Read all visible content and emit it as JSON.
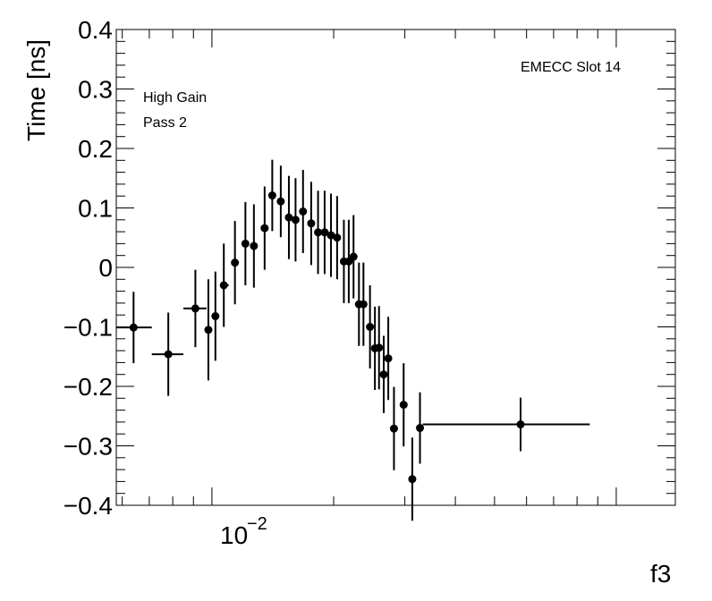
{
  "chart_data": {
    "type": "scatter",
    "style": "points-with-error-bars",
    "x_scale": "log",
    "xlim": [
      0.0058,
      0.14
    ],
    "ylim": [
      -0.4,
      0.4
    ],
    "xlabel": "f3",
    "ylabel": "Time [ns]",
    "x_tick_label_mantissa": "10",
    "x_tick_label_exponent": "−2",
    "y_ticks": [
      -0.4,
      -0.3,
      -0.2,
      -0.1,
      0,
      0.1,
      0.2,
      0.3,
      0.4
    ],
    "y_tick_labels": [
      "−0.4",
      "−0.3",
      "−0.2",
      "−0.1",
      "0",
      "0.1",
      "0.2",
      "0.3",
      "0.4"
    ],
    "annotations": {
      "slot": "EMECC Slot 14",
      "gain": "High Gain",
      "pass": "Pass 2"
    },
    "series": [
      {
        "name": "Pass 2",
        "points": [
          {
            "x": 0.0064,
            "xlo": 0.0058,
            "xhi": 0.0071,
            "y": -0.101,
            "ey": 0.06
          },
          {
            "x": 0.0078,
            "xlo": 0.0071,
            "xhi": 0.0085,
            "y": -0.146,
            "ey": 0.07
          },
          {
            "x": 0.0091,
            "xlo": 0.0085,
            "xhi": 0.0097,
            "y": -0.069,
            "ey": 0.065
          },
          {
            "x": 0.0098,
            "xlo": 0.0097,
            "xhi": 0.01,
            "y": -0.105,
            "ey": 0.085
          },
          {
            "x": 0.0102,
            "xlo": 0.0101,
            "xhi": 0.0104,
            "y": -0.082,
            "ey": 0.075
          },
          {
            "x": 0.0107,
            "xlo": 0.0105,
            "xhi": 0.011,
            "y": -0.03,
            "ey": 0.07
          },
          {
            "x": 0.0114,
            "xlo": 0.0112,
            "xhi": 0.0116,
            "y": 0.008,
            "ey": 0.07
          },
          {
            "x": 0.0121,
            "xlo": 0.0119,
            "xhi": 0.0123,
            "y": 0.04,
            "ey": 0.07
          },
          {
            "x": 0.0127,
            "xlo": 0.0125,
            "xhi": 0.0129,
            "y": 0.036,
            "ey": 0.07
          },
          {
            "x": 0.0135,
            "xlo": 0.0133,
            "xhi": 0.0137,
            "y": 0.066,
            "ey": 0.07
          },
          {
            "x": 0.0141,
            "xlo": 0.0139,
            "xhi": 0.0143,
            "y": 0.121,
            "ey": 0.06
          },
          {
            "x": 0.0148,
            "xlo": 0.0146,
            "xhi": 0.015,
            "y": 0.111,
            "ey": 0.06
          },
          {
            "x": 0.0155,
            "xlo": 0.0153,
            "xhi": 0.0157,
            "y": 0.084,
            "ey": 0.07
          },
          {
            "x": 0.0161,
            "xlo": 0.0159,
            "xhi": 0.0163,
            "y": 0.08,
            "ey": 0.07
          },
          {
            "x": 0.0168,
            "xlo": 0.0166,
            "xhi": 0.017,
            "y": 0.094,
            "ey": 0.07
          },
          {
            "x": 0.0176,
            "xlo": 0.0174,
            "xhi": 0.0178,
            "y": 0.074,
            "ey": 0.07
          },
          {
            "x": 0.0183,
            "xlo": 0.0181,
            "xhi": 0.0185,
            "y": 0.059,
            "ey": 0.07
          },
          {
            "x": 0.019,
            "xlo": 0.0188,
            "xhi": 0.0192,
            "y": 0.059,
            "ey": 0.07
          },
          {
            "x": 0.0197,
            "xlo": 0.0195,
            "xhi": 0.0199,
            "y": 0.054,
            "ey": 0.07
          },
          {
            "x": 0.0204,
            "xlo": 0.0202,
            "xhi": 0.0206,
            "y": 0.05,
            "ey": 0.07
          },
          {
            "x": 0.0212,
            "xlo": 0.021,
            "xhi": 0.0214,
            "y": 0.01,
            "ey": 0.07
          },
          {
            "x": 0.0218,
            "xlo": 0.0216,
            "xhi": 0.022,
            "y": 0.01,
            "ey": 0.07
          },
          {
            "x": 0.0224,
            "xlo": 0.0222,
            "xhi": 0.0226,
            "y": 0.018,
            "ey": 0.07
          },
          {
            "x": 0.0231,
            "xlo": 0.0229,
            "xhi": 0.0233,
            "y": -0.062,
            "ey": 0.07
          },
          {
            "x": 0.0237,
            "xlo": 0.0235,
            "xhi": 0.0239,
            "y": -0.062,
            "ey": 0.07
          },
          {
            "x": 0.0246,
            "xlo": 0.0244,
            "xhi": 0.0248,
            "y": -0.1,
            "ey": 0.07
          },
          {
            "x": 0.0253,
            "xlo": 0.0251,
            "xhi": 0.0255,
            "y": -0.136,
            "ey": 0.07
          },
          {
            "x": 0.0259,
            "xlo": 0.0257,
            "xhi": 0.0261,
            "y": -0.135,
            "ey": 0.07
          },
          {
            "x": 0.0266,
            "xlo": 0.0264,
            "xhi": 0.0268,
            "y": -0.18,
            "ey": 0.065
          },
          {
            "x": 0.0273,
            "xlo": 0.0271,
            "xhi": 0.0275,
            "y": -0.153,
            "ey": 0.07
          },
          {
            "x": 0.0282,
            "xlo": 0.028,
            "xhi": 0.0284,
            "y": -0.271,
            "ey": 0.07
          },
          {
            "x": 0.0298,
            "xlo": 0.0296,
            "xhi": 0.03,
            "y": -0.231,
            "ey": 0.07
          },
          {
            "x": 0.0313,
            "xlo": 0.0311,
            "xhi": 0.0315,
            "y": -0.356,
            "ey": 0.07
          },
          {
            "x": 0.0327,
            "xlo": 0.0325,
            "xhi": 0.033,
            "y": -0.27,
            "ey": 0.06
          },
          {
            "x": 0.058,
            "xlo": 0.0332,
            "xhi": 0.086,
            "y": -0.264,
            "ey": 0.045
          }
        ]
      }
    ]
  }
}
